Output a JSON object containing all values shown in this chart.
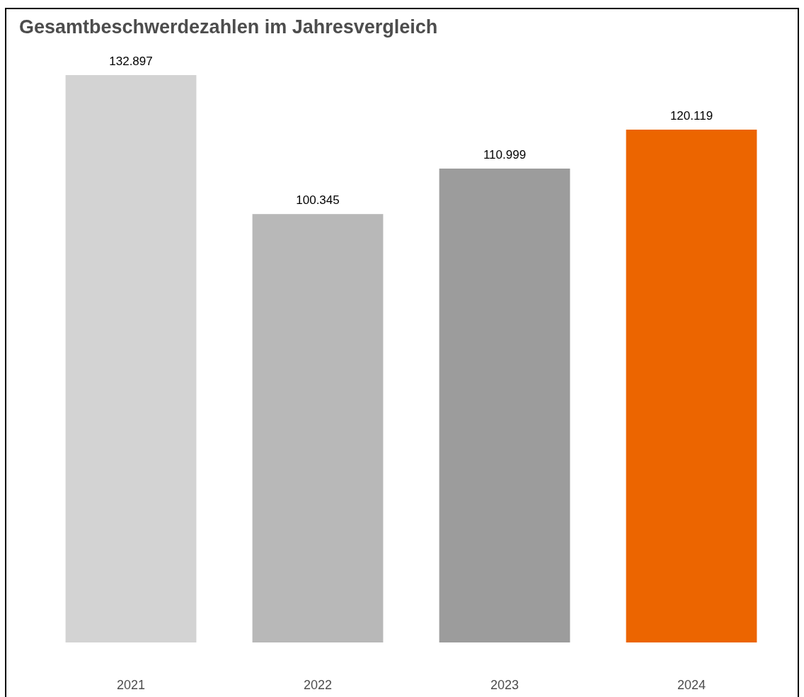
{
  "chart_data": {
    "type": "bar",
    "title": "Gesamtbeschwerdezahlen im Jahresvergleich",
    "categories": [
      "2021",
      "2022",
      "2023",
      "2024"
    ],
    "values": [
      132897,
      100345,
      110999,
      120119
    ],
    "colors": [
      "#d3d3d3",
      "#b8b8b8",
      "#9c9c9c",
      "#ec6500"
    ],
    "value_labels": [
      "132.897",
      "100.345",
      "110.999",
      "120.119"
    ]
  }
}
